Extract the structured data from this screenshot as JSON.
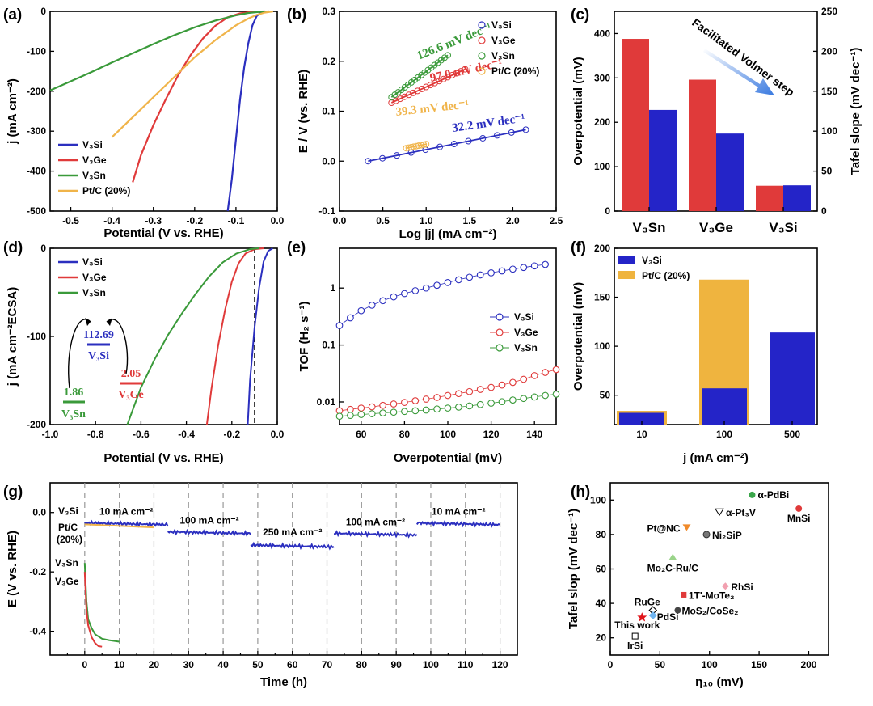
{
  "colors": {
    "v3si": "#2b2fbf",
    "v3ge": "#e03a3a",
    "v3sn": "#3a9a3a",
    "ptc": "#f0b44a",
    "ptc_bar": "#efb43f",
    "v3si_bar": "#2424c8"
  },
  "panels": {
    "a": {
      "label": "(a)"
    },
    "b": {
      "label": "(b)"
    },
    "c": {
      "label": "(c)"
    },
    "d": {
      "label": "(d)"
    },
    "e": {
      "label": "(e)"
    },
    "f": {
      "label": "(f)"
    },
    "g": {
      "label": "(g)"
    },
    "h": {
      "label": "(h)"
    }
  },
  "chart_data": [
    {
      "id": "a",
      "type": "line",
      "xlabel": "Potential (V vs. RHE)",
      "ylabel": "j (mA cm⁻²)",
      "xlim": [
        -0.55,
        0.0
      ],
      "ylim": [
        -500,
        0
      ],
      "xticks": [
        "-0.5",
        "-0.4",
        "-0.3",
        "-0.2",
        "-0.1",
        "0.0"
      ],
      "yticks": [
        "0",
        "-100",
        "-200",
        "-300",
        "-400",
        "-500"
      ],
      "series": [
        {
          "name": "V₃Si",
          "x": [
            -0.12,
            -0.11,
            -0.1,
            -0.09,
            -0.08,
            -0.07,
            -0.06,
            -0.05,
            -0.04,
            -0.03
          ],
          "y": [
            -500,
            -420,
            -320,
            -220,
            -140,
            -80,
            -35,
            -12,
            -3,
            0
          ]
        },
        {
          "name": "V₃Ge",
          "x": [
            -0.35,
            -0.33,
            -0.3,
            -0.27,
            -0.24,
            -0.21,
            -0.18,
            -0.15,
            -0.12,
            -0.09,
            -0.06,
            -0.03
          ],
          "y": [
            -428,
            -360,
            -285,
            -220,
            -160,
            -110,
            -68,
            -36,
            -15,
            -5,
            -1,
            0
          ]
        },
        {
          "name": "V₃Sn",
          "x": [
            -0.55,
            -0.5,
            -0.45,
            -0.4,
            -0.35,
            -0.3,
            -0.25,
            -0.2,
            -0.15,
            -0.1,
            -0.07,
            -0.04,
            -0.02
          ],
          "y": [
            -198,
            -175,
            -152,
            -128,
            -105,
            -82,
            -60,
            -40,
            -23,
            -10,
            -4,
            -1,
            0
          ]
        },
        {
          "name": "Pt/C (20%)",
          "x": [
            -0.4,
            -0.35,
            -0.3,
            -0.25,
            -0.2,
            -0.15,
            -0.1,
            -0.07,
            -0.05,
            -0.03,
            -0.01
          ],
          "y": [
            -315,
            -265,
            -215,
            -165,
            -115,
            -72,
            -35,
            -18,
            -9,
            -3,
            0
          ]
        }
      ]
    },
    {
      "id": "b",
      "type": "scatter",
      "xlabel": "Log |j| (mA cm⁻²)",
      "ylabel": "E / V (vs. RHE)",
      "xlim": [
        0.0,
        2.5
      ],
      "ylim": [
        -0.1,
        0.3
      ],
      "xticks": [
        "0.0",
        "0.5",
        "1.0",
        "1.5",
        "2.0",
        "2.5"
      ],
      "yticks": [
        "-0.1",
        "0.0",
        "0.1",
        "0.2",
        "0.3"
      ],
      "series": [
        {
          "name": "V₃Si",
          "x0": 0.33,
          "x1": 2.15,
          "y0": 0.0,
          "y1": 0.063,
          "n": 12,
          "slope": "32.2 mV dec⁻¹"
        },
        {
          "name": "V₃Ge",
          "x0": 0.6,
          "x1": 1.45,
          "y0": 0.117,
          "y1": 0.184,
          "n": 18,
          "slope": "97.0 mV dec⁻¹"
        },
        {
          "name": "V₃Sn",
          "x0": 0.6,
          "x1": 1.25,
          "y0": 0.128,
          "y1": 0.212,
          "n": 18,
          "slope": "126.6 mV dec⁻¹"
        },
        {
          "name": "Pt/C (20%)",
          "x0": 0.77,
          "x1": 1.0,
          "y0": 0.026,
          "y1": 0.034,
          "n": 9,
          "slope": "39.3 mV dec⁻¹"
        }
      ]
    },
    {
      "id": "c",
      "type": "bar",
      "categories": [
        "V₃Sn",
        "V₃Ge",
        "V₃Si"
      ],
      "series": [
        {
          "name": "Overpotential (mV)",
          "values": [
            388,
            296,
            57
          ]
        },
        {
          "name": "Tafel slope (mV dec⁻¹)",
          "values": [
            126.6,
            97.0,
            32.2
          ]
        }
      ],
      "ylabel": "Overpotential (mV)",
      "y2label": "Tafel slope (mV dec⁻¹)",
      "ylim": [
        0,
        450
      ],
      "y2lim": [
        0,
        250
      ],
      "yticks": [
        "0",
        "100",
        "200",
        "300",
        "400"
      ],
      "y2ticks": [
        "0",
        "50",
        "100",
        "150",
        "200",
        "250"
      ],
      "annotation": "Facilitated Volmer step"
    },
    {
      "id": "d",
      "type": "line",
      "xlabel": "Potential (V vs. RHE)",
      "ylabel": "j (mA cm⁻²ECSA)",
      "xlim": [
        -1.0,
        0.0
      ],
      "ylim": [
        -200,
        0
      ],
      "xticks": [
        "-1.0",
        "-0.8",
        "-0.6",
        "-0.4",
        "-0.2",
        "0.0"
      ],
      "yticks": [
        "0",
        "-100",
        "-200"
      ],
      "series": [
        {
          "name": "V₃Si",
          "x": [
            -0.13,
            -0.12,
            -0.1,
            -0.08,
            -0.06,
            -0.04,
            -0.02
          ],
          "y": [
            -200,
            -150,
            -90,
            -45,
            -15,
            -3,
            0
          ]
        },
        {
          "name": "V₃Ge",
          "x": [
            -0.31,
            -0.29,
            -0.26,
            -0.23,
            -0.2,
            -0.17,
            -0.14,
            -0.1,
            -0.06
          ],
          "y": [
            -200,
            -160,
            -110,
            -70,
            -38,
            -17,
            -6,
            -1,
            0
          ]
        },
        {
          "name": "V₃Sn",
          "x": [
            -0.66,
            -0.6,
            -0.54,
            -0.48,
            -0.42,
            -0.36,
            -0.3,
            -0.24,
            -0.18,
            -0.12,
            -0.08
          ],
          "y": [
            -200,
            -158,
            -126,
            -98,
            -74,
            -52,
            -32,
            -16,
            -6,
            -1,
            0
          ]
        }
      ],
      "inset": {
        "V₃Si": "112.69",
        "V₃Ge": "2.05",
        "V₃Sn": "1.86"
      }
    },
    {
      "id": "e",
      "type": "scatter",
      "xlabel": "Overpotential (mV)",
      "ylabel": "TOF (H₂ s⁻¹)",
      "xlim": [
        50,
        150
      ],
      "ylim": [
        0.004,
        5
      ],
      "yscale": "log",
      "xticks": [
        "60",
        "80",
        "100",
        "120",
        "140"
      ],
      "yticks": [
        "0.01",
        "0.1",
        "1"
      ],
      "series": [
        {
          "name": "V₃Si",
          "x": [
            50,
            55,
            60,
            65,
            70,
            75,
            80,
            85,
            90,
            95,
            100,
            105,
            110,
            115,
            120,
            125,
            130,
            135,
            140,
            145
          ],
          "y": [
            0.22,
            0.3,
            0.4,
            0.5,
            0.6,
            0.7,
            0.8,
            0.9,
            1.0,
            1.12,
            1.25,
            1.4,
            1.55,
            1.7,
            1.85,
            2.0,
            2.15,
            2.3,
            2.45,
            2.6
          ]
        },
        {
          "name": "V₃Ge",
          "x": [
            50,
            55,
            60,
            65,
            70,
            75,
            80,
            85,
            90,
            95,
            100,
            105,
            110,
            115,
            120,
            125,
            130,
            135,
            140,
            145,
            150
          ],
          "y": [
            0.007,
            0.0074,
            0.0078,
            0.0082,
            0.0087,
            0.0092,
            0.0098,
            0.0105,
            0.0112,
            0.012,
            0.013,
            0.014,
            0.0152,
            0.0166,
            0.018,
            0.0198,
            0.022,
            0.025,
            0.029,
            0.033,
            0.037
          ]
        },
        {
          "name": "V₃Sn",
          "x": [
            50,
            55,
            60,
            65,
            70,
            75,
            80,
            85,
            90,
            95,
            100,
            105,
            110,
            115,
            120,
            125,
            130,
            135,
            140,
            145,
            150
          ],
          "y": [
            0.0056,
            0.0058,
            0.006,
            0.0062,
            0.0064,
            0.0066,
            0.0068,
            0.007,
            0.0072,
            0.0075,
            0.0078,
            0.0081,
            0.0085,
            0.009,
            0.0095,
            0.0101,
            0.0108,
            0.0115,
            0.0122,
            0.013,
            0.0137
          ]
        }
      ]
    },
    {
      "id": "f",
      "type": "bar",
      "categories": [
        "10",
        "100",
        "500"
      ],
      "xlabel": "j (mA cm⁻²)",
      "ylabel": "Overpotential (mV)",
      "ylim": [
        20,
        200
      ],
      "yticks": [
        "50",
        "100",
        "150",
        "200"
      ],
      "series": [
        {
          "name": "V₃Si",
          "values": [
            32,
            57,
            114
          ]
        },
        {
          "name": "Pt/C (20%)",
          "values": [
            34,
            168,
            null
          ]
        }
      ]
    },
    {
      "id": "g",
      "type": "line",
      "xlabel": "Time (h)",
      "ylabel": "E (V vs. RHE)",
      "xlim": [
        -10,
        125
      ],
      "ylim": [
        -0.48,
        0.1
      ],
      "xticks": [
        "0",
        "10",
        "20",
        "30",
        "40",
        "50",
        "60",
        "70",
        "80",
        "90",
        "100",
        "110",
        "120"
      ],
      "yticks": [
        "0.0",
        "-0.2",
        "-0.4"
      ],
      "segments": [
        {
          "label": "10 mA cm⁻²",
          "t0": 0,
          "t1": 24,
          "E": -0.035
        },
        {
          "label": "100 mA cm⁻²",
          "t0": 24,
          "t1": 48,
          "E": -0.065
        },
        {
          "label": "250 mA cm⁻²",
          "t0": 48,
          "t1": 72,
          "E": -0.11
        },
        {
          "label": "100 mA cm⁻²",
          "t0": 72,
          "t1": 96,
          "E": -0.07
        },
        {
          "label": "10 mA cm⁻²",
          "t0": 96,
          "t1": 120,
          "E": -0.035
        }
      ],
      "series": [
        {
          "name": "V₃Si",
          "note": "segmented chronopotentiometry"
        },
        {
          "name": "Pt/C (20%)",
          "x": [
            0,
            20
          ],
          "y": [
            -0.04,
            -0.05
          ]
        },
        {
          "name": "V₃Sn",
          "x": [
            0,
            0.5,
            1,
            2,
            3,
            5,
            7,
            10
          ],
          "y": [
            -0.17,
            -0.3,
            -0.36,
            -0.39,
            -0.41,
            -0.425,
            -0.43,
            -0.435
          ]
        },
        {
          "name": "V₃Ge",
          "x": [
            0,
            0.5,
            1,
            2,
            3,
            4,
            5
          ],
          "y": [
            -0.2,
            -0.33,
            -0.38,
            -0.42,
            -0.44,
            -0.45,
            -0.452
          ]
        }
      ],
      "legend": {
        "si": "V₃Si",
        "pt1": "Pt/C",
        "pt2": "(20%)",
        "sn": "V₃Sn",
        "ge": "V₃Ge"
      }
    },
    {
      "id": "h",
      "type": "scatter",
      "xlabel": "η₁₀ (mV)",
      "ylabel": "Tafel slop (mV dec⁻¹)",
      "xlim": [
        0,
        220
      ],
      "ylim": [
        10,
        110
      ],
      "xticks": [
        "0",
        "50",
        "100",
        "150",
        "200"
      ],
      "yticks": [
        "20",
        "40",
        "60",
        "80",
        "100"
      ],
      "points": [
        {
          "name": "α-PdBi",
          "x": 143,
          "y": 103,
          "color": "#3aa64a"
        },
        {
          "name": "MnSi",
          "x": 190,
          "y": 95,
          "color": "#e03a3a"
        },
        {
          "name": "α-Pt₃V",
          "x": 110,
          "y": 93,
          "color": "#ffffff"
        },
        {
          "name": "Pt@NC",
          "x": 77,
          "y": 84,
          "color": "#f08a2a"
        },
        {
          "name": "Ni₂SiP",
          "x": 97,
          "y": 80,
          "color": "#777777"
        },
        {
          "name": "Mo₂C-Ru/C",
          "x": 63,
          "y": 67,
          "color": "#9ad48a"
        },
        {
          "name": "RhSi",
          "x": 116,
          "y": 50,
          "color": "#f2a0b0"
        },
        {
          "name": "1T'-MoTe₂",
          "x": 74,
          "y": 45,
          "color": "#e03a3a"
        },
        {
          "name": "RuGe",
          "x": 43,
          "y": 36,
          "color": "#222222"
        },
        {
          "name": "MoS₂/CoSe₂",
          "x": 68,
          "y": 36,
          "color": "#444444"
        },
        {
          "name": "PdSi",
          "x": 43,
          "y": 33,
          "color": "#6fb4f0"
        },
        {
          "name": "This work",
          "x": 32,
          "y": 32,
          "color": "#e0151b"
        },
        {
          "name": "IrSi",
          "x": 25,
          "y": 21,
          "color": "#ffffff"
        }
      ]
    }
  ]
}
